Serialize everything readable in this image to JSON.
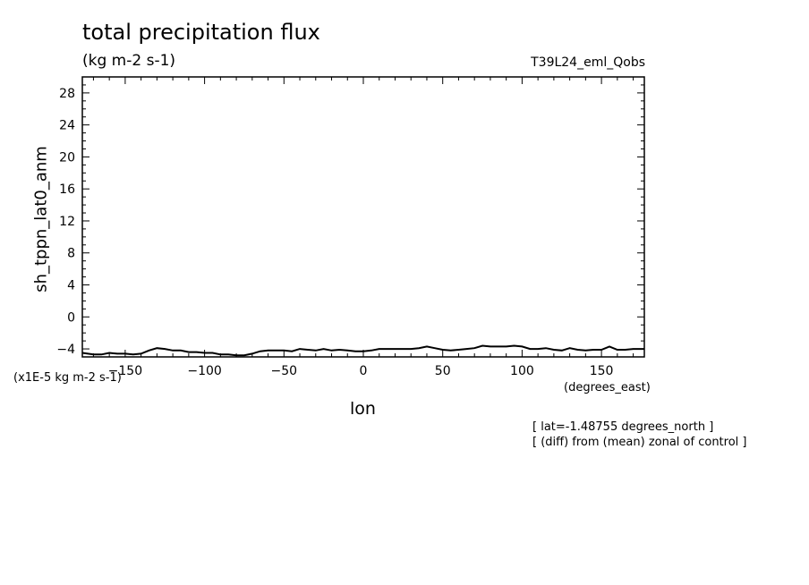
{
  "chart_data": {
    "type": "line",
    "title": "total precipitation flux",
    "units": "(kg m-2 s-1)",
    "run_label": "T39L24_eml_Qobs",
    "xlabel": "lon",
    "x_units": "(degrees_east)",
    "ylabel": "sh_tppn_lat0_anm",
    "y_scale_note": "(x1E-5 kg m-2 s-1)",
    "notes": [
      "[ lat=-1.48755 degrees_north ]",
      "[ (diff) from (mean) zonal of control ]"
    ],
    "xlim": [
      -177,
      177
    ],
    "ylim": [
      -5,
      30
    ],
    "x_ticks": [
      -150,
      -100,
      -50,
      0,
      50,
      100,
      150
    ],
    "y_ticks": [
      -4,
      0,
      4,
      8,
      12,
      16,
      20,
      24,
      28
    ],
    "grid": false,
    "series": [
      {
        "x": [
          -177,
          -170,
          -165,
          -160,
          -155,
          -150,
          -145,
          -140,
          -135,
          -130,
          -125,
          -120,
          -115,
          -110,
          -105,
          -100,
          -95,
          -90,
          -85,
          -80,
          -75,
          -70,
          -65,
          -60,
          -55,
          -50,
          -45,
          -40,
          -35,
          -30,
          -25,
          -20,
          -15,
          -10,
          -5,
          0,
          5,
          10,
          15,
          20,
          25,
          30,
          35,
          40,
          45,
          50,
          55,
          60,
          65,
          70,
          75,
          80,
          85,
          90,
          95,
          100,
          105,
          110,
          115,
          120,
          125,
          130,
          135,
          140,
          145,
          150,
          155,
          160,
          165,
          170,
          177
        ],
        "y": [
          -4.5,
          -4.7,
          -4.7,
          -4.5,
          -4.6,
          -4.6,
          -4.7,
          -4.6,
          -4.2,
          -3.9,
          -4.0,
          -4.2,
          -4.2,
          -4.4,
          -4.4,
          -4.5,
          -4.5,
          -4.7,
          -4.7,
          -4.8,
          -4.8,
          -4.6,
          -4.3,
          -4.2,
          -4.2,
          -4.2,
          -4.3,
          -4.0,
          -4.1,
          -4.2,
          -4.0,
          -4.2,
          -4.1,
          -4.2,
          -4.3,
          -4.3,
          -4.2,
          -4.0,
          -4.0,
          -4.0,
          -4.0,
          -4.0,
          -3.9,
          -3.7,
          -3.9,
          -4.1,
          -4.2,
          -4.1,
          -4.0,
          -3.9,
          -3.6,
          -3.7,
          -3.7,
          -3.7,
          -3.6,
          -3.7,
          -4.0,
          -4.0,
          -3.9,
          -4.1,
          -4.2,
          -3.9,
          -4.1,
          -4.2,
          -4.1,
          -4.1,
          -3.7,
          -4.1,
          -4.1,
          -4.0,
          -4.0
        ]
      }
    ]
  }
}
